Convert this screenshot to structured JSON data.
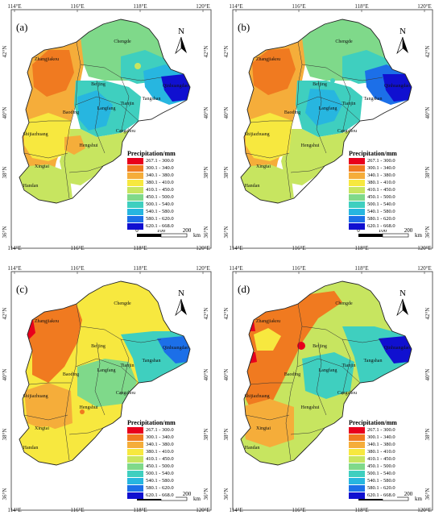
{
  "panels": [
    {
      "id": "a",
      "label": "(a)"
    },
    {
      "id": "b",
      "label": "(b)"
    },
    {
      "id": "c",
      "label": "(c)"
    },
    {
      "id": "d",
      "label": "(d)"
    }
  ],
  "axes": {
    "lon_labels": [
      "114°E",
      "116°E",
      "118°E",
      "120°E"
    ],
    "lat_labels": [
      "42°N",
      "40°N",
      "38°N",
      "36°N"
    ]
  },
  "north_arrow_label": "N",
  "legend": {
    "title": "Precipitation/mm",
    "classes": [
      {
        "range": "267.1 - 300.0",
        "color": "#e8001c"
      },
      {
        "range": "300.1 - 340.0",
        "color": "#f07a20"
      },
      {
        "range": "340.1 - 380.0",
        "color": "#f5ad3a"
      },
      {
        "range": "380.1 - 410.0",
        "color": "#f7e83f"
      },
      {
        "range": "410.1 - 450.0",
        "color": "#c7e560"
      },
      {
        "range": "450.1 - 500.0",
        "color": "#7fd98a"
      },
      {
        "range": "500.1 - 540.0",
        "color": "#3fcfbf"
      },
      {
        "range": "540.1 - 580.0",
        "color": "#27b6e0"
      },
      {
        "range": "580.1 - 620.0",
        "color": "#1c6fe8"
      },
      {
        "range": "620.1 - 668.0",
        "color": "#1010d0"
      }
    ]
  },
  "scale_bar": {
    "labels": [
      "0",
      "100",
      "200"
    ],
    "unit": "km"
  },
  "cities": [
    "Chengde",
    "Zhangjiakou",
    "Beijing",
    "Qinhuangdao",
    "Tangshan",
    "Langfang",
    "Tianjin",
    "Baoding",
    "Cangzhou",
    "Shijiazhuang",
    "Hengshui",
    "Xingtai",
    "Handan"
  ]
}
